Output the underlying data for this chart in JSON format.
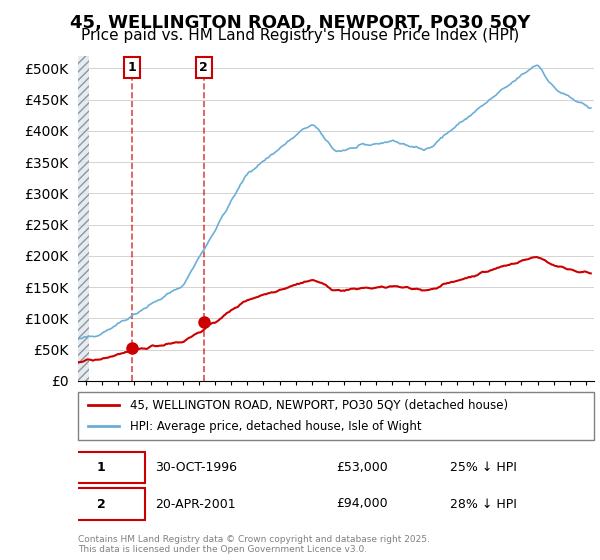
{
  "title": "45, WELLINGTON ROAD, NEWPORT, PO30 5QY",
  "subtitle": "Price paid vs. HM Land Registry's House Price Index (HPI)",
  "legend_line1": "45, WELLINGTON ROAD, NEWPORT, PO30 5QY (detached house)",
  "legend_line2": "HPI: Average price, detached house, Isle of Wight",
  "transaction1_label": "1",
  "transaction1_date": "30-OCT-1996",
  "transaction1_price": "£53,000",
  "transaction1_hpi": "25% ↓ HPI",
  "transaction1_year": 1996.83,
  "transaction1_value": 53000,
  "transaction2_label": "2",
  "transaction2_date": "20-APR-2001",
  "transaction2_price": "£94,000",
  "transaction2_hpi": "28% ↓ HPI",
  "transaction2_year": 2001.3,
  "transaction2_value": 94000,
  "footer": "Contains HM Land Registry data © Crown copyright and database right 2025.\nThis data is licensed under the Open Government Licence v3.0.",
  "hpi_color": "#6baed6",
  "price_color": "#cc0000",
  "background_hatch": "#e8eef5",
  "ylim": [
    0,
    520000
  ],
  "yticks": [
    0,
    50000,
    100000,
    150000,
    200000,
    250000,
    300000,
    350000,
    400000,
    450000,
    500000
  ],
  "xmin": 1993.5,
  "xmax": 2025.5,
  "title_fontsize": 13,
  "subtitle_fontsize": 11
}
